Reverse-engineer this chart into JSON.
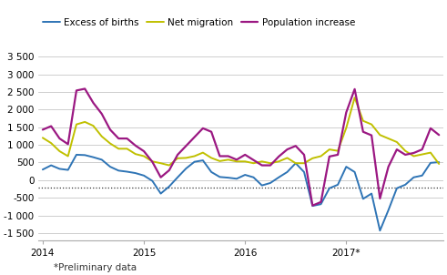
{
  "footnote": "*Preliminary data",
  "series": {
    "Excess of births": [
      300,
      420,
      320,
      290,
      720,
      710,
      650,
      580,
      380,
      270,
      240,
      200,
      130,
      -20,
      -380,
      -180,
      80,
      330,
      520,
      560,
      230,
      90,
      70,
      40,
      150,
      80,
      -150,
      -80,
      80,
      230,
      480,
      230,
      -730,
      -680,
      -230,
      -130,
      380,
      230,
      -530,
      -380,
      -1430,
      -850,
      -230,
      -130,
      80,
      130,
      490,
      510
    ],
    "Net migration": [
      1200,
      1050,
      820,
      680,
      1580,
      1650,
      1540,
      1240,
      1040,
      890,
      890,
      740,
      680,
      530,
      480,
      420,
      620,
      630,
      680,
      780,
      630,
      540,
      580,
      530,
      530,
      480,
      530,
      480,
      530,
      630,
      480,
      480,
      620,
      680,
      870,
      830,
      1480,
      2340,
      1680,
      1580,
      1280,
      1180,
      1080,
      830,
      680,
      730,
      780,
      460
    ],
    "Population increase": [
      1430,
      1530,
      1180,
      1020,
      2540,
      2590,
      2190,
      1880,
      1430,
      1180,
      1180,
      980,
      820,
      520,
      80,
      280,
      720,
      970,
      1220,
      1470,
      1370,
      680,
      680,
      580,
      720,
      570,
      420,
      420,
      670,
      870,
      970,
      720,
      -720,
      -620,
      670,
      720,
      1920,
      2580,
      1370,
      1270,
      -520,
      380,
      870,
      720,
      770,
      870,
      1470,
      1280
    ]
  },
  "colors": {
    "Excess of births": "#2E74B5",
    "Net migration": "#C0C000",
    "Population increase": "#9B1882"
  },
  "linewidths": {
    "Excess of births": 1.4,
    "Net migration": 1.4,
    "Population increase": 1.6
  },
  "ylim": [
    -1700,
    3800
  ],
  "yticks": [
    -1500,
    -1000,
    -500,
    0,
    500,
    1000,
    1500,
    2000,
    2500,
    3000,
    3500
  ],
  "ytick_labels": [
    "-1 500",
    "-1 000",
    "-500",
    "0",
    "500",
    "1 000",
    "1 500",
    "2 000",
    "2 500",
    "3 000",
    "3 500"
  ],
  "xtick_positions": [
    0,
    12,
    24,
    36
  ],
  "xtick_labels": [
    "2014",
    "2015",
    "2016",
    "2017*"
  ],
  "hline_y": -200,
  "hline_color": "#333333",
  "background_color": "#ffffff",
  "grid_color": "#bbbbbb",
  "legend_fontsize": 7.5,
  "axis_fontsize": 7.5,
  "footnote_fontsize": 7.5
}
